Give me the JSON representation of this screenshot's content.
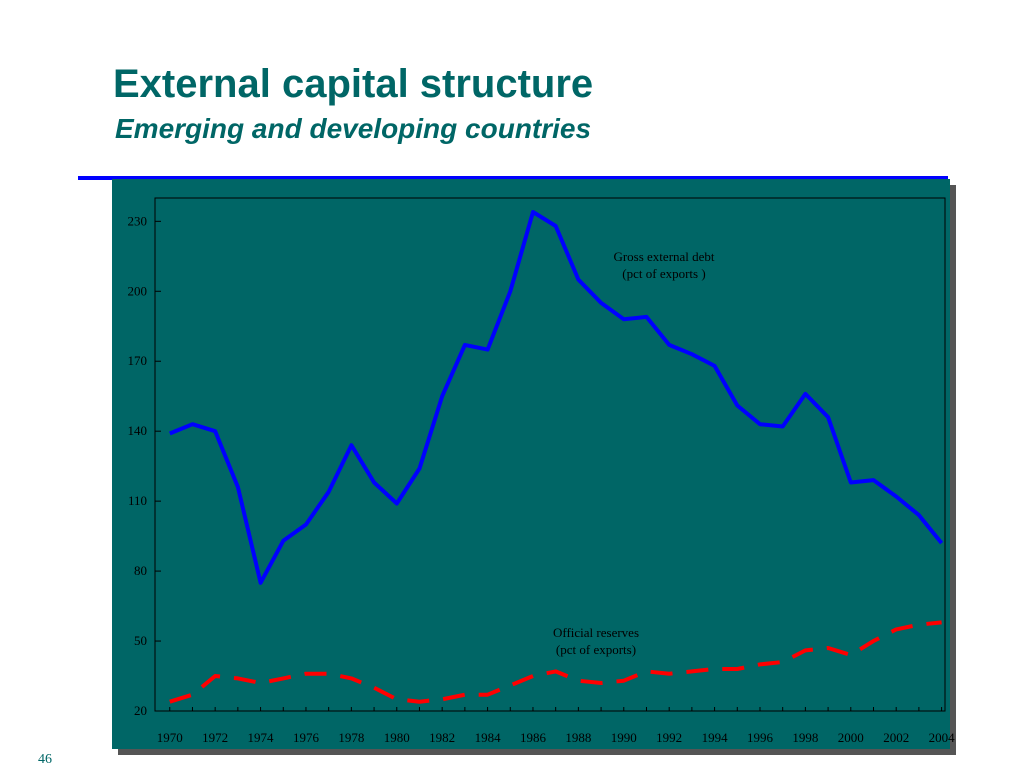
{
  "slide": {
    "title": "External capital structure",
    "subtitle": "Emerging and developing countries",
    "page_number": "46"
  },
  "colors": {
    "title": "#006666",
    "rule": "#0000ff",
    "chart_background": "#006666",
    "debt_line": "#0000ff",
    "reserves_line": "#ff0000"
  },
  "chart_data": {
    "type": "line",
    "x": [
      1970,
      1971,
      1972,
      1973,
      1974,
      1975,
      1976,
      1977,
      1978,
      1979,
      1980,
      1981,
      1982,
      1983,
      1984,
      1985,
      1986,
      1987,
      1988,
      1989,
      1990,
      1991,
      1992,
      1993,
      1994,
      1995,
      1996,
      1997,
      1998,
      1999,
      2000,
      2001,
      2002,
      2003,
      2004
    ],
    "x_tick_labels": [
      "1970",
      "1972",
      "1974",
      "1976",
      "1978",
      "1980",
      "1982",
      "1984",
      "1986",
      "1988",
      "1990",
      "1992",
      "1994",
      "1996",
      "1998",
      "2000",
      "2002",
      "2004"
    ],
    "y_tick_labels": [
      "20",
      "50",
      "80",
      "110",
      "140",
      "170",
      "200",
      "230"
    ],
    "ylim": [
      20,
      240
    ],
    "grid": false,
    "series": [
      {
        "style": "solid",
        "values": [
          139,
          143,
          140,
          116,
          75,
          93,
          100,
          114,
          134,
          118,
          109,
          124,
          155,
          177,
          175,
          200,
          234,
          228,
          205,
          195,
          188,
          189,
          177,
          173,
          168,
          151,
          143,
          142,
          156,
          146,
          118,
          119,
          112,
          104,
          92
        ]
      },
      {
        "style": "dashed",
        "values": [
          24,
          27,
          35,
          34,
          32,
          34,
          36,
          36,
          34,
          30,
          25,
          24,
          25,
          27,
          27,
          31,
          35,
          37,
          33,
          32,
          33,
          37,
          36,
          37,
          38,
          38,
          40,
          41,
          46,
          47,
          44,
          50,
          55,
          57,
          58
        ]
      }
    ],
    "annotations": [
      {
        "series_index": 0,
        "lines": [
          "Gross external debt",
          "(pct of exports )"
        ]
      },
      {
        "series_index": 1,
        "lines": [
          "Official reserves",
          "(pct of exports)"
        ]
      }
    ]
  }
}
